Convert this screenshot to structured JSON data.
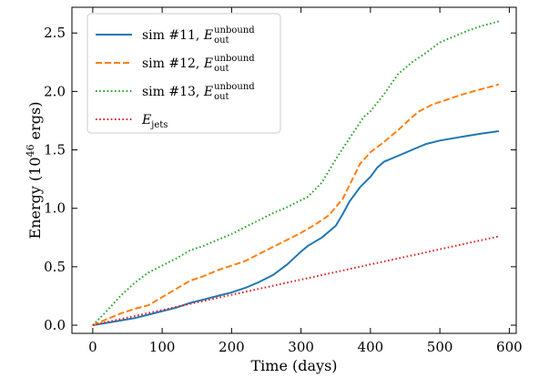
{
  "chart_data": {
    "type": "line",
    "title": "",
    "xlabel": "Time (days)",
    "ylabel_parts": {
      "prefix": "Energy (10",
      "exponent": "46",
      "suffix": " ergs)"
    },
    "xlim": [
      -30,
      610
    ],
    "ylim": [
      -0.07,
      2.72
    ],
    "x_ticks": [
      0,
      100,
      200,
      300,
      400,
      500,
      600
    ],
    "y_ticks": [
      0.0,
      0.5,
      1.0,
      1.5,
      2.0,
      2.5
    ],
    "x_tick_labels": [
      "0",
      "100",
      "200",
      "300",
      "400",
      "500",
      "600"
    ],
    "y_tick_labels": [
      "0.0",
      "0.5",
      "1.0",
      "1.5",
      "2.0",
      "2.5"
    ],
    "grid": false,
    "legend_position": "top-left",
    "series": [
      {
        "legend_main": "sim #11, ",
        "legend_sym": "E",
        "legend_sup": "unbound",
        "legend_sub": "out",
        "color": "#1f77b4",
        "style": "solid",
        "points": [
          [
            0,
            0
          ],
          [
            20,
            0.02
          ],
          [
            40,
            0.04
          ],
          [
            60,
            0.06
          ],
          [
            80,
            0.09
          ],
          [
            100,
            0.12
          ],
          [
            120,
            0.15
          ],
          [
            140,
            0.19
          ],
          [
            160,
            0.22
          ],
          [
            180,
            0.25
          ],
          [
            200,
            0.28
          ],
          [
            220,
            0.32
          ],
          [
            240,
            0.37
          ],
          [
            260,
            0.43
          ],
          [
            280,
            0.52
          ],
          [
            300,
            0.63
          ],
          [
            310,
            0.68
          ],
          [
            330,
            0.75
          ],
          [
            350,
            0.85
          ],
          [
            360,
            0.95
          ],
          [
            370,
            1.06
          ],
          [
            385,
            1.18
          ],
          [
            400,
            1.27
          ],
          [
            410,
            1.35
          ],
          [
            420,
            1.4
          ],
          [
            440,
            1.45
          ],
          [
            460,
            1.5
          ],
          [
            480,
            1.55
          ],
          [
            500,
            1.58
          ],
          [
            520,
            1.6
          ],
          [
            540,
            1.62
          ],
          [
            560,
            1.64
          ],
          [
            585,
            1.66
          ]
        ]
      },
      {
        "legend_main": "sim #12, ",
        "legend_sym": "E",
        "legend_sup": "unbound",
        "legend_sub": "out",
        "color": "#ff7f0e",
        "style": "dashed",
        "points": [
          [
            0,
            0
          ],
          [
            20,
            0.05
          ],
          [
            40,
            0.1
          ],
          [
            60,
            0.14
          ],
          [
            80,
            0.17
          ],
          [
            100,
            0.24
          ],
          [
            120,
            0.31
          ],
          [
            140,
            0.38
          ],
          [
            160,
            0.42
          ],
          [
            180,
            0.47
          ],
          [
            200,
            0.51
          ],
          [
            220,
            0.55
          ],
          [
            240,
            0.61
          ],
          [
            260,
            0.67
          ],
          [
            280,
            0.73
          ],
          [
            300,
            0.79
          ],
          [
            320,
            0.86
          ],
          [
            340,
            0.94
          ],
          [
            360,
            1.08
          ],
          [
            370,
            1.2
          ],
          [
            385,
            1.38
          ],
          [
            400,
            1.48
          ],
          [
            420,
            1.57
          ],
          [
            440,
            1.67
          ],
          [
            460,
            1.78
          ],
          [
            470,
            1.83
          ],
          [
            490,
            1.89
          ],
          [
            510,
            1.93
          ],
          [
            530,
            1.97
          ],
          [
            560,
            2.02
          ],
          [
            585,
            2.06
          ]
        ]
      },
      {
        "legend_main": "sim #13, ",
        "legend_sym": "E",
        "legend_sup": "unbound",
        "legend_sub": "out",
        "color": "#2ca02c",
        "style": "dotted",
        "points": [
          [
            0,
            0
          ],
          [
            20,
            0.12
          ],
          [
            40,
            0.25
          ],
          [
            60,
            0.36
          ],
          [
            80,
            0.45
          ],
          [
            100,
            0.51
          ],
          [
            120,
            0.57
          ],
          [
            140,
            0.64
          ],
          [
            160,
            0.68
          ],
          [
            180,
            0.73
          ],
          [
            200,
            0.78
          ],
          [
            220,
            0.84
          ],
          [
            240,
            0.9
          ],
          [
            260,
            0.96
          ],
          [
            280,
            1.01
          ],
          [
            300,
            1.07
          ],
          [
            310,
            1.1
          ],
          [
            330,
            1.22
          ],
          [
            350,
            1.42
          ],
          [
            370,
            1.6
          ],
          [
            390,
            1.78
          ],
          [
            400,
            1.83
          ],
          [
            420,
            1.98
          ],
          [
            440,
            2.15
          ],
          [
            460,
            2.25
          ],
          [
            480,
            2.33
          ],
          [
            500,
            2.42
          ],
          [
            520,
            2.47
          ],
          [
            540,
            2.52
          ],
          [
            560,
            2.56
          ],
          [
            585,
            2.6
          ]
        ]
      },
      {
        "legend_main": "",
        "legend_sym": "E",
        "legend_sup": "",
        "legend_sub": "jets",
        "color": "#d62728",
        "style": "dotted",
        "points": [
          [
            0,
            0
          ],
          [
            585,
            0.76
          ]
        ]
      }
    ]
  }
}
